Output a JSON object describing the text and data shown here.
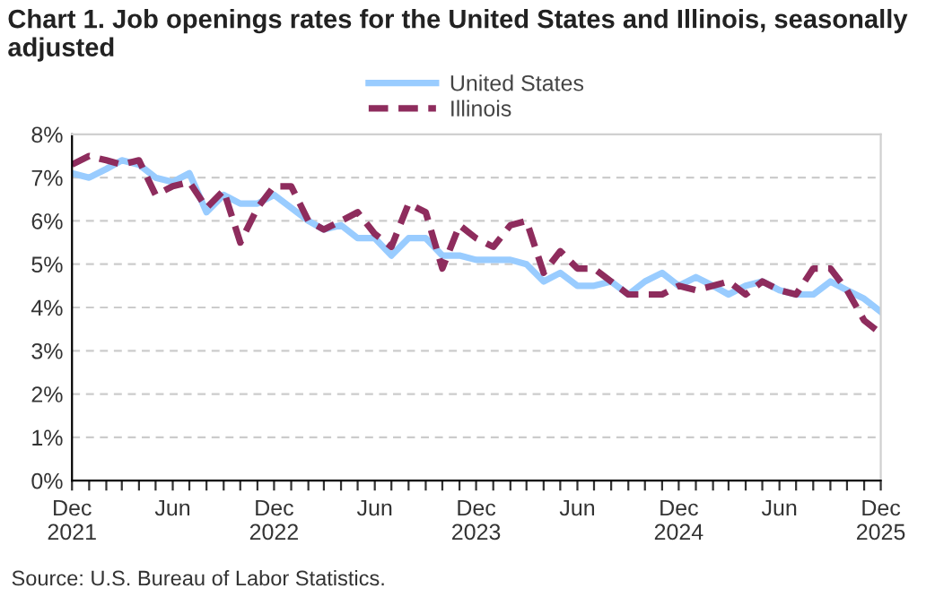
{
  "chart_data": {
    "type": "line",
    "title": "Chart 1. Job openings rates for the United States and Illinois, seasonally adjusted",
    "x": [
      "2021-12",
      "2022-01",
      "2022-02",
      "2022-03",
      "2022-04",
      "2022-05",
      "2022-06",
      "2022-07",
      "2022-08",
      "2022-09",
      "2022-10",
      "2022-11",
      "2022-12",
      "2023-01",
      "2023-02",
      "2023-03",
      "2023-04",
      "2023-05",
      "2023-06",
      "2023-07",
      "2023-08",
      "2023-09",
      "2023-10",
      "2023-11",
      "2023-12",
      "2024-01",
      "2024-02",
      "2024-03",
      "2024-04",
      "2024-05",
      "2024-06",
      "2024-07",
      "2024-08",
      "2024-09",
      "2024-10",
      "2024-11",
      "2024-12",
      "2025-01",
      "2025-02",
      "2025-03",
      "2025-04",
      "2025-05",
      "2025-06",
      "2025-07",
      "2025-08",
      "2025-09",
      "2025-10",
      "2025-11",
      "2025-12"
    ],
    "series": [
      {
        "name": "United States",
        "color": "#99ccff",
        "line_style": "solid",
        "values": [
          7.1,
          7.0,
          7.2,
          7.4,
          7.3,
          7.0,
          6.9,
          7.1,
          6.2,
          6.6,
          6.4,
          6.4,
          6.6,
          6.3,
          6.0,
          5.8,
          5.9,
          5.6,
          5.6,
          5.2,
          5.6,
          5.6,
          5.2,
          5.2,
          5.1,
          5.1,
          5.1,
          5.0,
          4.6,
          4.8,
          4.5,
          4.5,
          4.6,
          4.3,
          4.6,
          4.8,
          4.5,
          4.7,
          4.5,
          4.3,
          4.5,
          4.6,
          4.4,
          4.3,
          4.3,
          4.6,
          4.4,
          4.2,
          3.9
        ]
      },
      {
        "name": "Illinois",
        "color": "#8e2c5d",
        "line_style": "dashed",
        "values": [
          7.3,
          7.5,
          7.4,
          7.3,
          7.4,
          6.6,
          6.8,
          6.9,
          6.3,
          6.7,
          5.5,
          6.3,
          6.8,
          6.8,
          6.0,
          5.8,
          6.0,
          6.2,
          5.7,
          5.4,
          6.4,
          6.2,
          4.9,
          5.9,
          5.6,
          5.4,
          5.9,
          6.0,
          4.8,
          5.3,
          4.9,
          4.9,
          4.6,
          4.3,
          4.3,
          4.3,
          4.5,
          4.4,
          4.5,
          4.6,
          4.3,
          4.6,
          4.4,
          4.3,
          4.9,
          4.9,
          4.4,
          3.7,
          3.4
        ]
      }
    ],
    "xlim": [
      "2021-12",
      "2025-12"
    ],
    "xticks": [
      {
        "value": "2021-12",
        "label": "Dec\n2021"
      },
      {
        "value": "2022-01",
        "label": null
      },
      {
        "value": "2022-02",
        "label": null
      },
      {
        "value": "2022-03",
        "label": null
      },
      {
        "value": "2022-04",
        "label": null
      },
      {
        "value": "2022-05",
        "label": null
      },
      {
        "value": "2022-06",
        "label": "Jun"
      },
      {
        "value": "2022-07",
        "label": null
      },
      {
        "value": "2022-08",
        "label": null
      },
      {
        "value": "2022-09",
        "label": null
      },
      {
        "value": "2022-10",
        "label": null
      },
      {
        "value": "2022-11",
        "label": null
      },
      {
        "value": "2022-12",
        "label": "Dec\n2022"
      },
      {
        "value": "2023-01",
        "label": null
      },
      {
        "value": "2023-02",
        "label": null
      },
      {
        "value": "2023-03",
        "label": null
      },
      {
        "value": "2023-04",
        "label": null
      },
      {
        "value": "2023-05",
        "label": null
      },
      {
        "value": "2023-06",
        "label": "Jun"
      },
      {
        "value": "2023-07",
        "label": null
      },
      {
        "value": "2023-08",
        "label": null
      },
      {
        "value": "2023-09",
        "label": null
      },
      {
        "value": "2023-10",
        "label": null
      },
      {
        "value": "2023-11",
        "label": null
      },
      {
        "value": "2023-12",
        "label": "Dec\n2023"
      },
      {
        "value": "2024-01",
        "label": null
      },
      {
        "value": "2024-02",
        "label": null
      },
      {
        "value": "2024-03",
        "label": null
      },
      {
        "value": "2024-04",
        "label": null
      },
      {
        "value": "2024-05",
        "label": null
      },
      {
        "value": "2024-06",
        "label": "Jun"
      },
      {
        "value": "2024-07",
        "label": null
      },
      {
        "value": "2024-08",
        "label": null
      },
      {
        "value": "2024-09",
        "label": null
      },
      {
        "value": "2024-10",
        "label": null
      },
      {
        "value": "2024-11",
        "label": null
      },
      {
        "value": "2024-12",
        "label": "Dec\n2024"
      },
      {
        "value": "2025-01",
        "label": null
      },
      {
        "value": "2025-02",
        "label": null
      },
      {
        "value": "2025-03",
        "label": null
      },
      {
        "value": "2025-04",
        "label": null
      },
      {
        "value": "2025-05",
        "label": null
      },
      {
        "value": "2025-06",
        "label": "Jun"
      },
      {
        "value": "2025-07",
        "label": null
      },
      {
        "value": "2025-08",
        "label": null
      },
      {
        "value": "2025-09",
        "label": null
      },
      {
        "value": "2025-10",
        "label": null
      },
      {
        "value": "2025-11",
        "label": null
      },
      {
        "value": "2025-12",
        "label": "Dec\n2025"
      }
    ],
    "ylim": [
      0,
      8
    ],
    "yticks": [
      {
        "value": 0,
        "label": "0%"
      },
      {
        "value": 1,
        "label": "1%"
      },
      {
        "value": 2,
        "label": "2%"
      },
      {
        "value": 3,
        "label": "3%"
      },
      {
        "value": 4,
        "label": "4%"
      },
      {
        "value": 5,
        "label": "5%"
      },
      {
        "value": 6,
        "label": "6%"
      },
      {
        "value": 7,
        "label": "7%"
      },
      {
        "value": 8,
        "label": "8%"
      }
    ],
    "grid": "y",
    "legend": "top",
    "annotations": [
      "Source: U.S. Bureau of Labor Statistics."
    ]
  }
}
